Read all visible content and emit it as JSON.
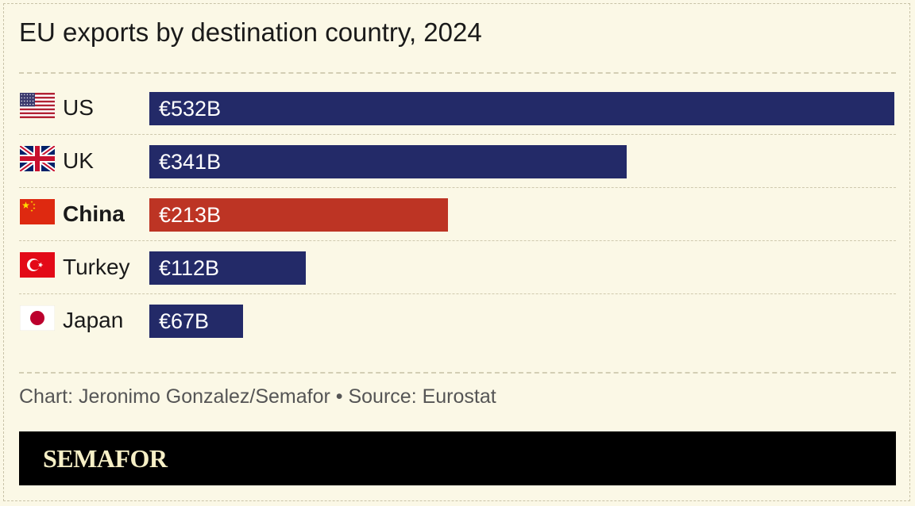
{
  "title": "EU exports by destination country, 2024",
  "credit": "Chart: Jeronimo Gonzalez/Semafor • Source: Eurostat",
  "brand": "SEMAFOR",
  "colors": {
    "background": "#fbf8e6",
    "bar": "#232a68",
    "highlight_bar": "#bd3424",
    "brand_bar": "#000000",
    "brand_text": "#f6efc6"
  },
  "chart_data": {
    "type": "bar",
    "orientation": "horizontal",
    "title": "EU exports by destination country, 2024",
    "categories": [
      "US",
      "UK",
      "China",
      "Turkey",
      "Japan"
    ],
    "values": [
      532,
      341,
      213,
      112,
      67
    ],
    "value_labels": [
      "€532B",
      "€341B",
      "€213B",
      "€112B",
      "€67B"
    ],
    "flags": [
      "us-flag-icon",
      "uk-flag-icon",
      "china-flag-icon",
      "turkey-flag-icon",
      "japan-flag-icon"
    ],
    "highlight": "China",
    "xlim": [
      0,
      532
    ],
    "grid": false,
    "legend": "none"
  }
}
